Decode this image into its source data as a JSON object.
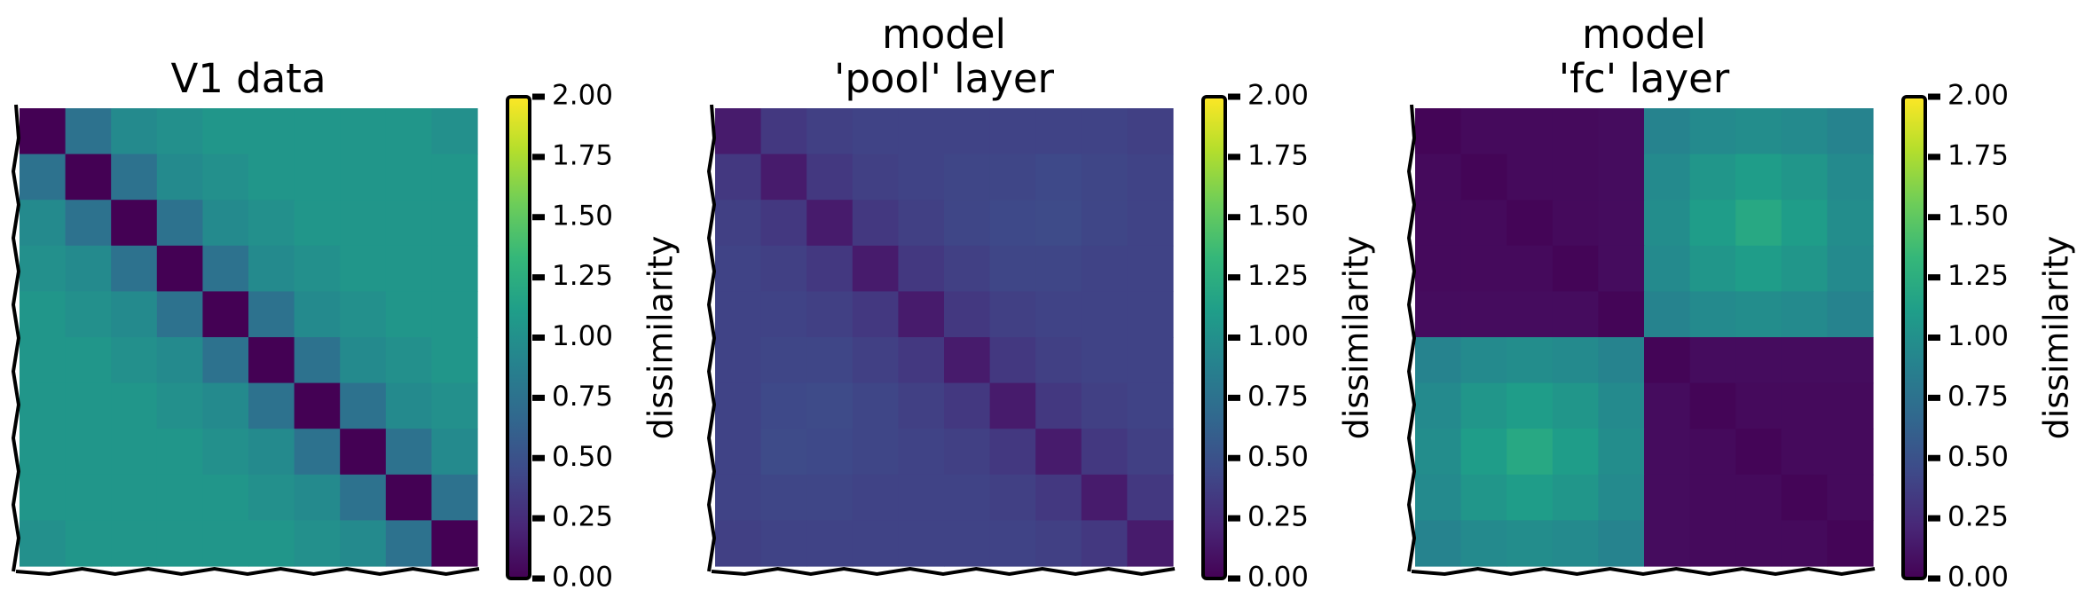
{
  "chart_data": [
    {
      "type": "heatmap",
      "title": [
        "V1 data"
      ],
      "colormap": "viridis",
      "zlim": [
        0,
        2
      ],
      "zticks": [
        {
          "value": 0,
          "label": "0.00"
        },
        {
          "value": 0.25,
          "label": "0.25"
        },
        {
          "value": 0.5,
          "label": "0.50"
        },
        {
          "value": 0.75,
          "label": "0.75"
        },
        {
          "value": 1,
          "label": "1.00"
        },
        {
          "value": 1.25,
          "label": "1.25"
        },
        {
          "value": 1.5,
          "label": "1.50"
        },
        {
          "value": 1.75,
          "label": "1.75"
        },
        {
          "value": 2,
          "label": "2.00"
        }
      ],
      "colorbar_label": "dissimilarity",
      "matrix": [
        [
          0,
          0.75,
          0.95,
          1.0,
          1.05,
          1.05,
          1.05,
          1.05,
          1.05,
          1.0
        ],
        [
          0.75,
          0,
          0.75,
          0.95,
          1.0,
          1.05,
          1.05,
          1.05,
          1.05,
          1.05
        ],
        [
          0.95,
          0.75,
          0,
          0.75,
          0.95,
          1.0,
          1.05,
          1.05,
          1.05,
          1.05
        ],
        [
          1.0,
          0.95,
          0.75,
          0,
          0.75,
          0.95,
          1.0,
          1.05,
          1.05,
          1.05
        ],
        [
          1.05,
          1.0,
          0.95,
          0.75,
          0,
          0.75,
          0.95,
          1.0,
          1.05,
          1.05
        ],
        [
          1.05,
          1.05,
          1.0,
          0.95,
          0.75,
          0,
          0.75,
          0.95,
          1.0,
          1.05
        ],
        [
          1.05,
          1.05,
          1.05,
          1.0,
          0.95,
          0.75,
          0,
          0.75,
          0.95,
          1.0
        ],
        [
          1.05,
          1.05,
          1.05,
          1.05,
          1.0,
          0.95,
          0.75,
          0,
          0.75,
          0.95
        ],
        [
          1.05,
          1.05,
          1.05,
          1.05,
          1.05,
          1.0,
          0.95,
          0.75,
          0,
          0.75
        ],
        [
          1.0,
          1.05,
          1.05,
          1.05,
          1.05,
          1.05,
          1.0,
          0.95,
          0.75,
          0
        ]
      ]
    },
    {
      "type": "heatmap",
      "title": [
        "model",
        "'pool' layer"
      ],
      "colormap": "viridis",
      "zlim": [
        0,
        2
      ],
      "zticks": [
        {
          "value": 0,
          "label": "0.00"
        },
        {
          "value": 0.25,
          "label": "0.25"
        },
        {
          "value": 0.5,
          "label": "0.50"
        },
        {
          "value": 0.75,
          "label": "0.75"
        },
        {
          "value": 1,
          "label": "1.00"
        },
        {
          "value": 1.25,
          "label": "1.25"
        },
        {
          "value": 1.5,
          "label": "1.50"
        },
        {
          "value": 1.75,
          "label": "1.75"
        },
        {
          "value": 2,
          "label": "2.00"
        }
      ],
      "colorbar_label": "dissimilarity",
      "matrix": [
        [
          0.15,
          0.33,
          0.38,
          0.4,
          0.4,
          0.4,
          0.4,
          0.4,
          0.4,
          0.38
        ],
        [
          0.33,
          0.15,
          0.33,
          0.38,
          0.4,
          0.42,
          0.42,
          0.44,
          0.42,
          0.4
        ],
        [
          0.38,
          0.33,
          0.15,
          0.33,
          0.38,
          0.42,
          0.44,
          0.45,
          0.42,
          0.4
        ],
        [
          0.4,
          0.38,
          0.33,
          0.15,
          0.33,
          0.38,
          0.42,
          0.42,
          0.4,
          0.4
        ],
        [
          0.4,
          0.4,
          0.38,
          0.33,
          0.15,
          0.33,
          0.38,
          0.4,
          0.4,
          0.4
        ],
        [
          0.4,
          0.42,
          0.42,
          0.38,
          0.33,
          0.15,
          0.33,
          0.38,
          0.4,
          0.4
        ],
        [
          0.4,
          0.44,
          0.45,
          0.42,
          0.38,
          0.33,
          0.15,
          0.33,
          0.38,
          0.4
        ],
        [
          0.4,
          0.45,
          0.44,
          0.42,
          0.4,
          0.38,
          0.33,
          0.15,
          0.33,
          0.38
        ],
        [
          0.4,
          0.42,
          0.42,
          0.4,
          0.4,
          0.4,
          0.38,
          0.33,
          0.15,
          0.33
        ],
        [
          0.38,
          0.4,
          0.4,
          0.4,
          0.4,
          0.4,
          0.4,
          0.38,
          0.33,
          0.15
        ]
      ]
    },
    {
      "type": "heatmap",
      "title": [
        "model",
        "'fc' layer"
      ],
      "colormap": "viridis",
      "zlim": [
        0,
        2
      ],
      "zticks": [
        {
          "value": 0,
          "label": "0.00"
        },
        {
          "value": 0.25,
          "label": "0.25"
        },
        {
          "value": 0.5,
          "label": "0.50"
        },
        {
          "value": 0.75,
          "label": "0.75"
        },
        {
          "value": 1,
          "label": "1.00"
        },
        {
          "value": 1.25,
          "label": "1.25"
        },
        {
          "value": 1.5,
          "label": "1.50"
        },
        {
          "value": 1.75,
          "label": "1.75"
        },
        {
          "value": 2,
          "label": "2.00"
        }
      ],
      "colorbar_label": "dissimilarity",
      "matrix": [
        [
          0.02,
          0.05,
          0.05,
          0.05,
          0.06,
          0.9,
          0.95,
          0.98,
          0.95,
          0.9
        ],
        [
          0.05,
          0.02,
          0.05,
          0.05,
          0.06,
          0.95,
          1.05,
          1.1,
          1.05,
          0.95
        ],
        [
          0.05,
          0.05,
          0.02,
          0.05,
          0.06,
          0.98,
          1.1,
          1.2,
          1.1,
          0.98
        ],
        [
          0.05,
          0.05,
          0.05,
          0.02,
          0.06,
          0.95,
          1.05,
          1.1,
          1.05,
          0.95
        ],
        [
          0.06,
          0.06,
          0.06,
          0.06,
          0.02,
          0.9,
          0.95,
          0.98,
          0.95,
          0.9
        ],
        [
          0.9,
          0.95,
          0.98,
          0.95,
          0.9,
          0.02,
          0.06,
          0.06,
          0.06,
          0.06
        ],
        [
          0.95,
          1.05,
          1.1,
          1.05,
          0.95,
          0.06,
          0.02,
          0.05,
          0.05,
          0.05
        ],
        [
          0.98,
          1.1,
          1.2,
          1.1,
          0.98,
          0.06,
          0.05,
          0.02,
          0.05,
          0.05
        ],
        [
          0.95,
          1.05,
          1.1,
          1.05,
          0.95,
          0.06,
          0.05,
          0.05,
          0.02,
          0.05
        ],
        [
          0.9,
          0.95,
          0.98,
          0.95,
          0.9,
          0.06,
          0.05,
          0.05,
          0.05,
          0.02
        ]
      ]
    }
  ]
}
